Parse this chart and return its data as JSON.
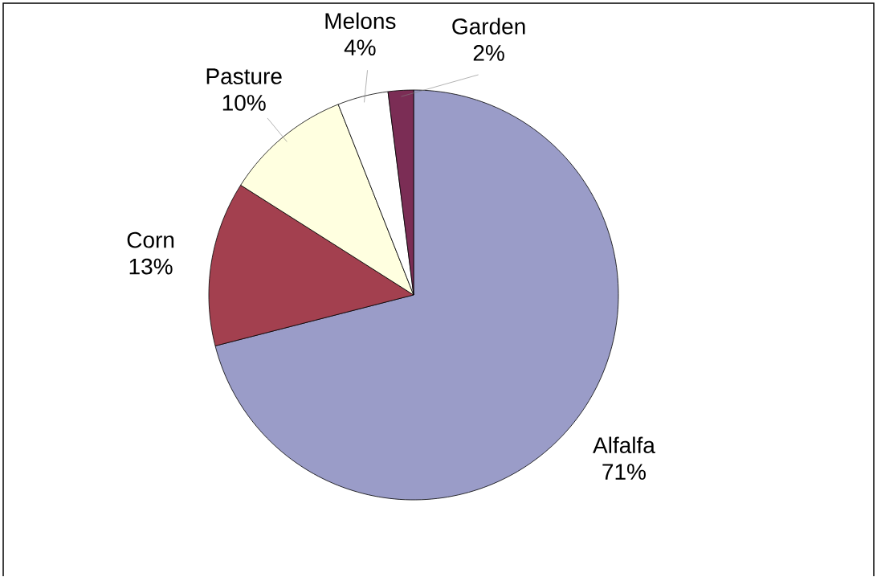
{
  "chart_data": {
    "type": "pie",
    "categories": [
      "Alfalfa",
      "Corn",
      "Pasture",
      "Melons",
      "Garden"
    ],
    "values": [
      71,
      13,
      10,
      4,
      2
    ],
    "value_labels": [
      "71%",
      "13%",
      "10%",
      "4%",
      "2%"
    ],
    "colors": [
      "#9a9cc8",
      "#a3404f",
      "#ffffe0",
      "#ffffff",
      "#7b2d55"
    ]
  }
}
